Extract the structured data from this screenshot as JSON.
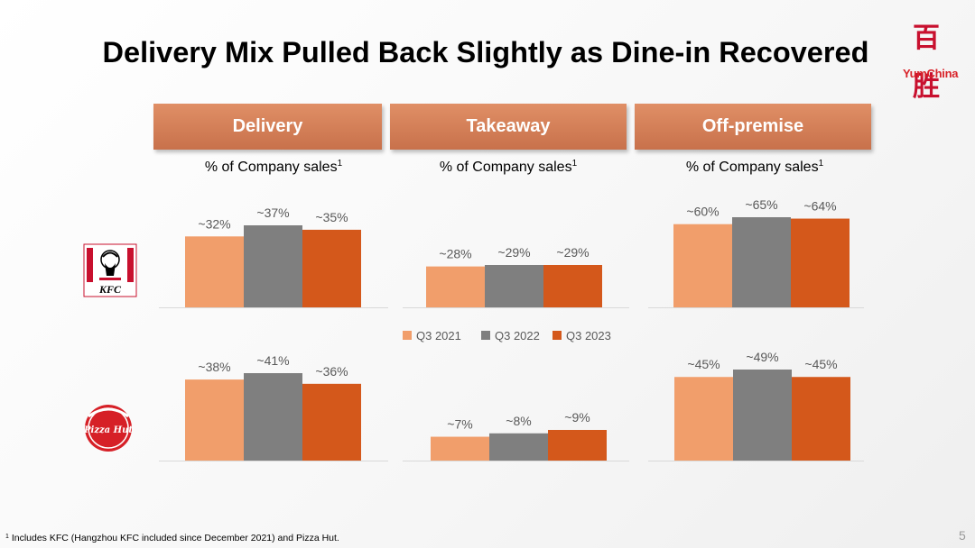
{
  "title": "Delivery Mix Pulled Back Slightly as Dine-in Recovered",
  "logo": {
    "text": "YumChina",
    "mark": "百胜"
  },
  "headers": [
    "Delivery",
    "Takeaway",
    "Off-premise"
  ],
  "subtitle_text": "% of Company sales",
  "subtitle_sup": "1",
  "brands": [
    {
      "name": "KFC",
      "label": "KFC"
    },
    {
      "name": "Pizza Hut",
      "label": "Pizza Hut"
    }
  ],
  "colors": {
    "q3_2021": "#f19e6b",
    "q3_2022": "#7f7f7f",
    "q3_2023": "#d4581b",
    "header": "#d17d55"
  },
  "chart_data": [
    {
      "type": "bar",
      "brand": "KFC",
      "metric": "Delivery",
      "categories": [
        "Q3 2021",
        "Q3 2022",
        "Q3 2023"
      ],
      "values": [
        32,
        37,
        35
      ],
      "labels": [
        "~32%",
        "~37%",
        "~35%"
      ]
    },
    {
      "type": "bar",
      "brand": "KFC",
      "metric": "Takeaway",
      "categories": [
        "Q3 2021",
        "Q3 2022",
        "Q3 2023"
      ],
      "values": [
        28,
        29,
        29
      ],
      "labels": [
        "~28%",
        "~29%",
        "~29%"
      ]
    },
    {
      "type": "bar",
      "brand": "KFC",
      "metric": "Off-premise",
      "categories": [
        "Q3 2021",
        "Q3 2022",
        "Q3 2023"
      ],
      "values": [
        60,
        65,
        64
      ],
      "labels": [
        "~60%",
        "~65%",
        "~64%"
      ]
    },
    {
      "type": "bar",
      "brand": "Pizza Hut",
      "metric": "Delivery",
      "categories": [
        "Q3 2021",
        "Q3 2022",
        "Q3 2023"
      ],
      "values": [
        38,
        41,
        36
      ],
      "labels": [
        "~38%",
        "~41%",
        "~36%"
      ]
    },
    {
      "type": "bar",
      "brand": "Pizza Hut",
      "metric": "Takeaway",
      "categories": [
        "Q3 2021",
        "Q3 2022",
        "Q3 2023"
      ],
      "values": [
        7,
        8,
        9
      ],
      "labels": [
        "~7%",
        "~8%",
        "~9%"
      ]
    },
    {
      "type": "bar",
      "brand": "Pizza Hut",
      "metric": "Off-premise",
      "categories": [
        "Q3 2021",
        "Q3 2022",
        "Q3 2023"
      ],
      "values": [
        45,
        49,
        45
      ],
      "labels": [
        "~45%",
        "~49%",
        "~45%"
      ]
    }
  ],
  "legend": [
    "Q3 2021",
    "Q3 2022",
    "Q3 2023"
  ],
  "footnote_sup": "1",
  "footnote": " Includes KFC (Hangzhou KFC included since December 2021) and Pizza Hut.",
  "page_number": "5"
}
